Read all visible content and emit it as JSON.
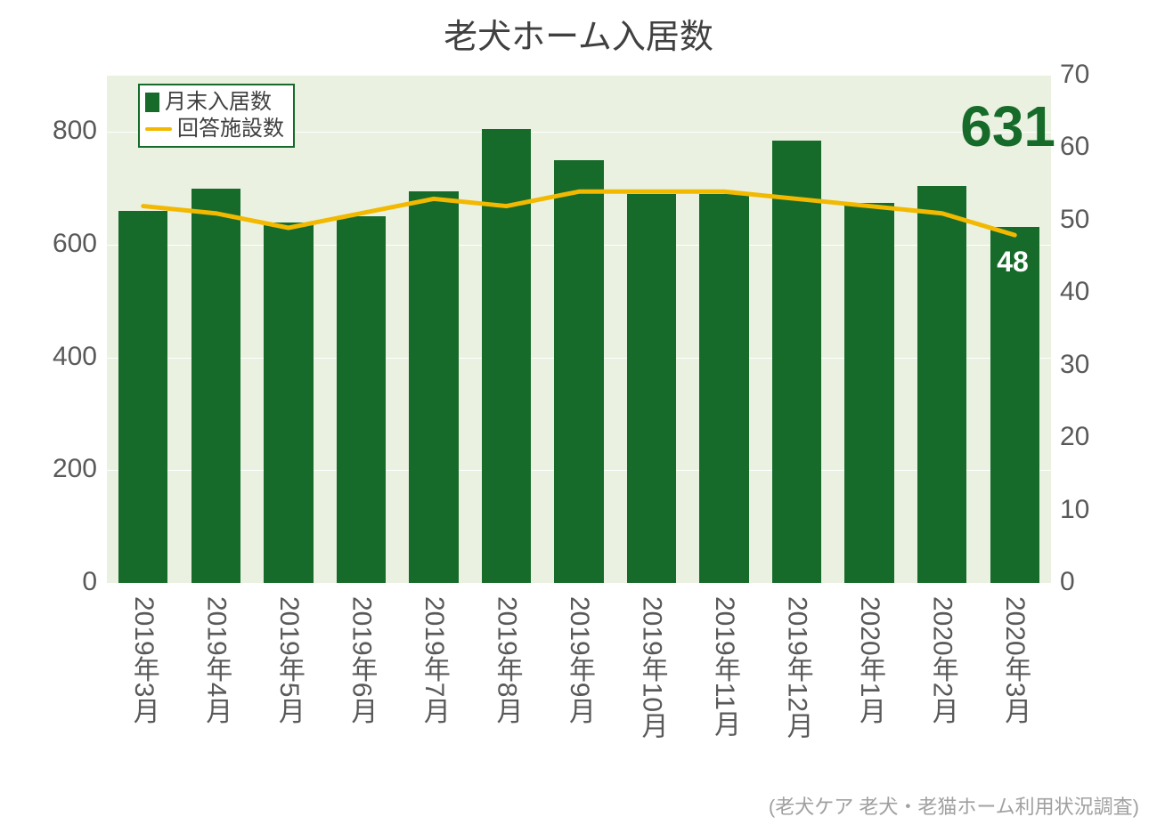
{
  "title": "老犬ホーム入居数",
  "source_note": "(老犬ケア 老犬・老猫ホーム利用状況調査)",
  "legend": {
    "bar_label": "月末入居数",
    "line_label": "回答施設数"
  },
  "highlight": {
    "big_value": "631",
    "big_color": "#176b2a",
    "small_value": "48",
    "small_color": "#ffffff"
  },
  "plot": {
    "background_color": "#eaf1e1",
    "grid_color": "#ffffff",
    "left_axis": {
      "min": 0,
      "max": 900,
      "ticks": [
        0,
        200,
        400,
        600,
        800
      ],
      "label_fontsize": 30,
      "label_color": "#595959"
    },
    "right_axis": {
      "min": 0,
      "max": 70,
      "ticks": [
        0,
        10,
        20,
        30,
        40,
        50,
        60,
        70
      ],
      "label_fontsize": 30,
      "label_color": "#595959"
    },
    "categories": [
      "2019年3月",
      "2019年4月",
      "2019年5月",
      "2019年6月",
      "2019年7月",
      "2019年8月",
      "2019年9月",
      "2019年10月",
      "2019年11月",
      "2019年12月",
      "2020年1月",
      "2020年2月",
      "2020年3月"
    ],
    "bars": {
      "color": "#176b2a",
      "width_frac": 0.68,
      "values": [
        660,
        700,
        640,
        650,
        695,
        805,
        750,
        690,
        690,
        785,
        675,
        705,
        631
      ]
    },
    "line": {
      "color": "#f2b900",
      "width": 5,
      "values": [
        52,
        51,
        49,
        51,
        53,
        52,
        54,
        54,
        54,
        53,
        52,
        51,
        48
      ]
    }
  }
}
